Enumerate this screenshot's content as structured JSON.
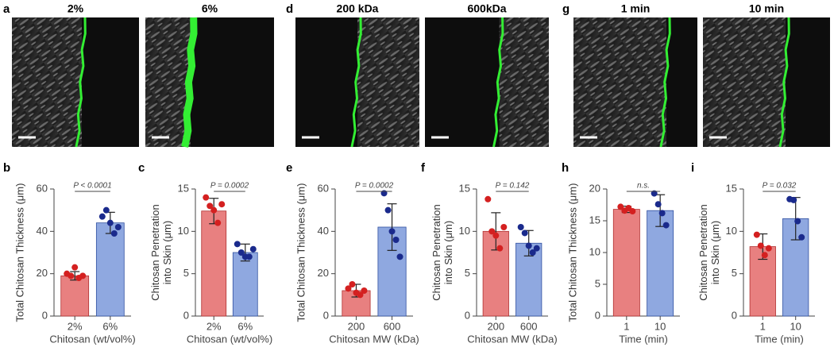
{
  "images": [
    {
      "letter": "a",
      "labels": [
        "2%",
        "6%"
      ]
    },
    {
      "letter": "d",
      "labels": [
        "200 kDa",
        "600kDa"
      ]
    },
    {
      "letter": "g",
      "labels": [
        "1 min",
        "10 min"
      ]
    }
  ],
  "chart_data": [
    {
      "type": "bar",
      "letter": "b",
      "ylabel": [
        "Total Chitosan Thickness (μm)"
      ],
      "xlabel": "Chitosan  (wt/vol%)",
      "categories": [
        "2%",
        "6%"
      ],
      "values": [
        19,
        44
      ],
      "errors": [
        2,
        5
      ],
      "colors": [
        "#e88080",
        "#8fa8e0"
      ],
      "points": [
        [
          20,
          19,
          23,
          18,
          19
        ],
        [
          47,
          50,
          44,
          39,
          42
        ]
      ],
      "point_colors": [
        "#d42020",
        "#1a2a8c"
      ],
      "ylim": [
        0,
        60
      ],
      "yticks": [
        0,
        20,
        40,
        60
      ],
      "annotation": "P < 0.0001"
    },
    {
      "type": "bar",
      "letter": "c",
      "ylabel": [
        "Chitosan Penetration",
        "into  Skin (μm)"
      ],
      "xlabel": "Chitosan  (wt/vol%)",
      "categories": [
        "2%",
        "6%"
      ],
      "values": [
        12.4,
        7.5
      ],
      "errors": [
        1.5,
        1.0
      ],
      "colors": [
        "#e88080",
        "#8fa8e0"
      ],
      "points": [
        [
          14,
          13,
          12.5,
          11,
          13.2
        ],
        [
          8.5,
          7.5,
          7,
          7,
          7.9
        ]
      ],
      "point_colors": [
        "#d42020",
        "#1a2a8c"
      ],
      "ylim": [
        0,
        15
      ],
      "yticks": [
        0,
        5,
        10,
        15
      ],
      "annotation": "P = 0.0002"
    },
    {
      "type": "bar",
      "letter": "e",
      "ylabel": [
        "Total Chitosan Thickness (μm)"
      ],
      "xlabel": "Chitosan MW  (kDa)",
      "categories": [
        "200",
        "600"
      ],
      "values": [
        12,
        42
      ],
      "errors": [
        3,
        11
      ],
      "colors": [
        "#e88080",
        "#8fa8e0"
      ],
      "points": [
        [
          13,
          15,
          11,
          10,
          12
        ],
        [
          58,
          50,
          40,
          36,
          28
        ]
      ],
      "point_colors": [
        "#d42020",
        "#1a2a8c"
      ],
      "ylim": [
        0,
        60
      ],
      "yticks": [
        0,
        20,
        40,
        60
      ],
      "annotation": "P = 0.0002"
    },
    {
      "type": "bar",
      "letter": "f",
      "ylabel": [
        "Chitosan Penetration",
        "into  Skin (μm)"
      ],
      "xlabel": "Chitosan MW  (kDa)",
      "categories": [
        "200",
        "600"
      ],
      "values": [
        10,
        8.6
      ],
      "errors": [
        2.2,
        1.5
      ],
      "colors": [
        "#e88080",
        "#8fa8e0"
      ],
      "points": [
        [
          13.8,
          10,
          9.5,
          8,
          10.5
        ],
        [
          10.5,
          9.8,
          8.3,
          7.5,
          8
        ]
      ],
      "point_colors": [
        "#d42020",
        "#1a2a8c"
      ],
      "ylim": [
        0,
        15
      ],
      "yticks": [
        0,
        5,
        10,
        15
      ],
      "annotation": "P = 0.142"
    },
    {
      "type": "bar",
      "letter": "h",
      "ylabel": [
        "Total Chitosan Thickness (μm)"
      ],
      "xlabel": "Time  (min)",
      "categories": [
        "1",
        "10"
      ],
      "values": [
        16.8,
        16.6
      ],
      "errors": [
        0.5,
        2.5
      ],
      "colors": [
        "#e88080",
        "#8fa8e0"
      ],
      "points": [
        [
          17.2,
          16.6,
          17.0,
          16.5
        ],
        [
          19.3,
          17.6,
          16.2,
          14.3
        ]
      ],
      "point_colors": [
        "#d42020",
        "#1a2a8c"
      ],
      "ylim": [
        0,
        20
      ],
      "yticks": [
        0,
        5,
        10,
        15,
        20
      ],
      "annotation": "n.s."
    },
    {
      "type": "bar",
      "letter": "i",
      "ylabel": [
        "Chitosan Penetration",
        "into  Skin (μm)"
      ],
      "xlabel": "Time  (min)",
      "categories": [
        "1",
        "10"
      ],
      "values": [
        8.2,
        11.5
      ],
      "errors": [
        1.5,
        2.5
      ],
      "colors": [
        "#e88080",
        "#8fa8e0"
      ],
      "points": [
        [
          9.6,
          8.3,
          7.2,
          8.0
        ],
        [
          13.8,
          13.7,
          11.2,
          9.3
        ]
      ],
      "point_colors": [
        "#d42020",
        "#1a2a8c"
      ],
      "ylim": [
        0,
        15
      ],
      "yticks": [
        0,
        5,
        10,
        15
      ],
      "annotation": "P = 0.032"
    }
  ]
}
